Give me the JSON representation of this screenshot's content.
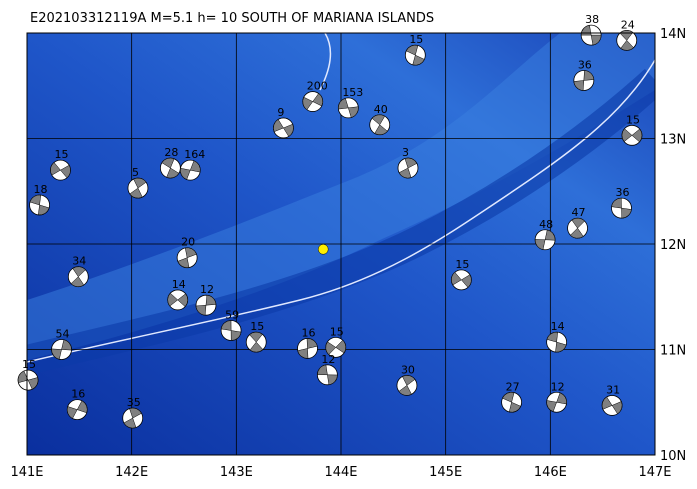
{
  "map": {
    "title": "E202103312119A  M=5.1  h= 10  SOUTH OF MARIANA ISLANDS",
    "xlim": [
      141,
      147
    ],
    "ylim": [
      10,
      14
    ],
    "xticks": [
      {
        "value": 141,
        "label": "141E"
      },
      {
        "value": 142,
        "label": "142E"
      },
      {
        "value": 143,
        "label": "143E"
      },
      {
        "value": 144,
        "label": "144E"
      },
      {
        "value": 145,
        "label": "145E"
      },
      {
        "value": 146,
        "label": "146E"
      },
      {
        "value": 147,
        "label": "147E"
      }
    ],
    "yticks": [
      {
        "value": 10,
        "label": "10N"
      },
      {
        "value": 11,
        "label": "11N"
      },
      {
        "value": 12,
        "label": "12N"
      },
      {
        "value": 13,
        "label": "13N"
      },
      {
        "value": 14,
        "label": "14N"
      }
    ],
    "grid": true,
    "epicenter": {
      "lon": 143.83,
      "lat": 11.95,
      "color": "#ffee00"
    },
    "events": [
      {
        "lon": 146.39,
        "lat": 13.98,
        "depth": 38
      },
      {
        "lon": 146.73,
        "lat": 13.93,
        "depth": 24
      },
      {
        "lon": 146.32,
        "lat": 13.55,
        "depth": 36
      },
      {
        "lon": 146.78,
        "lat": 13.03,
        "depth": 15
      },
      {
        "lon": 146.68,
        "lat": 12.34,
        "depth": 36
      },
      {
        "lon": 146.26,
        "lat": 12.15,
        "depth": 47
      },
      {
        "lon": 145.95,
        "lat": 12.04,
        "depth": 48
      },
      {
        "lon": 145.15,
        "lat": 11.66,
        "depth": 15
      },
      {
        "lon": 146.06,
        "lat": 11.07,
        "depth": 14
      },
      {
        "lon": 144.63,
        "lat": 10.66,
        "depth": 30
      },
      {
        "lon": 146.06,
        "lat": 10.5,
        "depth": 12
      },
      {
        "lon": 146.59,
        "lat": 10.47,
        "depth": 31
      },
      {
        "lon": 145.63,
        "lat": 10.5,
        "depth": 27
      },
      {
        "lon": 142.01,
        "lat": 10.35,
        "depth": 35
      },
      {
        "lon": 141.48,
        "lat": 10.43,
        "depth": 16
      },
      {
        "lon": 141.01,
        "lat": 10.71,
        "depth": 15
      },
      {
        "lon": 142.37,
        "lat": 12.72,
        "depth": 28
      },
      {
        "lon": 142.53,
        "lat": 11.87,
        "depth": 20
      },
      {
        "lon": 143.73,
        "lat": 13.35,
        "depth": 200
      },
      {
        "lon": 144.07,
        "lat": 13.29,
        "depth": 153
      },
      {
        "lon": 144.37,
        "lat": 13.13,
        "depth": 40
      },
      {
        "lon": 143.68,
        "lat": 11.01,
        "depth": 16
      },
      {
        "lon": 143.95,
        "lat": 11.02,
        "depth": 15
      },
      {
        "lon": 143.87,
        "lat": 10.76,
        "depth": 12
      },
      {
        "lon": 143.19,
        "lat": 11.07,
        "depth": 15
      },
      {
        "lon": 142.71,
        "lat": 11.42,
        "depth": 12
      },
      {
        "lon": 142.44,
        "lat": 11.47,
        "depth": 14
      },
      {
        "lon": 142.95,
        "lat": 11.18,
        "depth": 59
      },
      {
        "lon": 141.49,
        "lat": 11.69,
        "depth": 34
      },
      {
        "lon": 141.33,
        "lat": 11.0,
        "depth": 54
      },
      {
        "lon": 141.32,
        "lat": 12.7,
        "depth": 15
      },
      {
        "lon": 141.12,
        "lat": 12.37,
        "depth": 18
      },
      {
        "lon": 142.06,
        "lat": 12.53,
        "depth": 5
      },
      {
        "lon": 142.56,
        "lat": 12.7,
        "depth": 164
      },
      {
        "lon": 143.45,
        "lat": 13.1,
        "depth": 9
      },
      {
        "lon": 144.71,
        "lat": 13.79,
        "depth": 15
      },
      {
        "lon": 144.64,
        "lat": 12.72,
        "depth": 3
      }
    ]
  }
}
